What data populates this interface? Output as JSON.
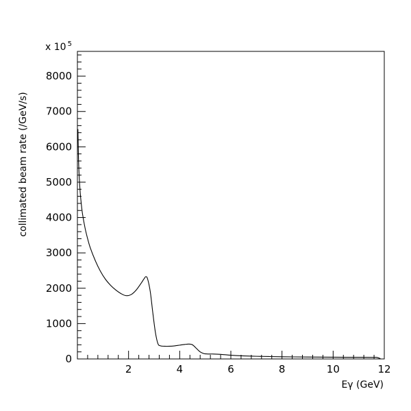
{
  "chart_data": {
    "type": "line",
    "xlabel": "Eγ (GeV)",
    "ylabel": "collimated beam rate (/GeV/s)",
    "scale_base": "x 10",
    "scale_exponent": "5",
    "xlim": [
      0,
      12
    ],
    "ylim": [
      0,
      8700
    ],
    "x_ticks": [
      2,
      4,
      6,
      8,
      10,
      12
    ],
    "y_ticks": [
      0,
      1000,
      2000,
      3000,
      4000,
      5000,
      6000,
      7000,
      8000
    ],
    "x_minor_step": 0.4,
    "y_minor_step": 200,
    "grid": false,
    "series": [
      {
        "x": [
          0.02,
          0.05,
          0.1,
          0.15,
          0.2,
          0.3,
          0.4,
          0.5,
          0.7,
          0.9,
          1.1,
          1.3,
          1.5,
          1.7,
          1.9,
          2.1,
          2.3,
          2.5,
          2.6,
          2.68,
          2.75,
          2.85,
          2.95,
          3.05,
          3.15,
          3.25,
          3.4,
          3.6,
          3.8,
          4.0,
          4.2,
          4.35,
          4.5,
          4.65,
          4.8,
          4.95,
          5.1,
          5.3,
          5.6,
          5.9,
          6.2,
          6.5,
          7.0,
          7.5,
          8.0,
          8.5,
          9.0,
          9.5,
          10.0,
          10.5,
          11.0,
          11.5,
          11.7,
          11.85
        ],
        "y": [
          6500,
          5500,
          4800,
          4400,
          4100,
          3700,
          3400,
          3150,
          2780,
          2480,
          2250,
          2080,
          1950,
          1850,
          1790,
          1820,
          1950,
          2150,
          2260,
          2330,
          2250,
          1900,
          1300,
          750,
          430,
          370,
          360,
          360,
          370,
          390,
          410,
          420,
          400,
          300,
          200,
          150,
          140,
          140,
          130,
          110,
          95,
          85,
          75,
          68,
          62,
          58,
          55,
          52,
          50,
          48,
          47,
          45,
          45,
          10
        ]
      }
    ]
  }
}
